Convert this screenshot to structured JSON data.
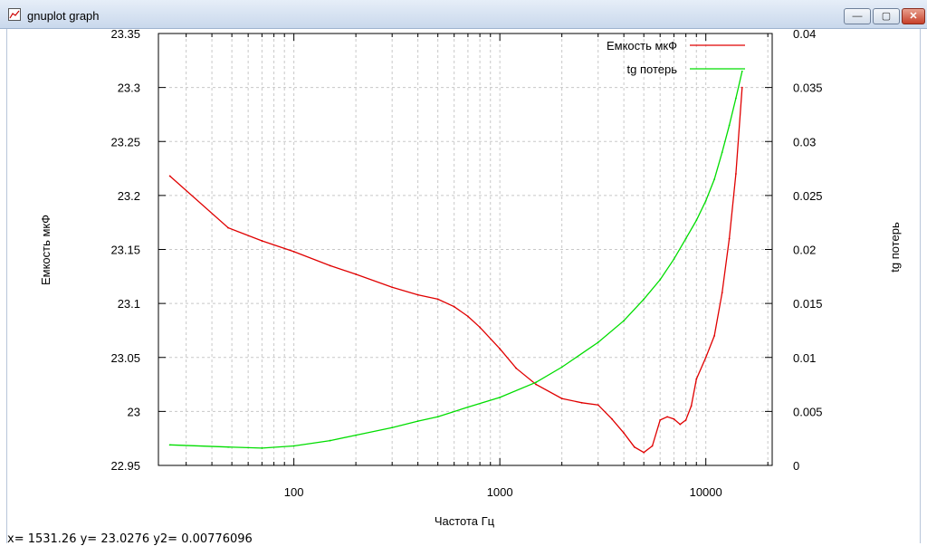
{
  "window": {
    "title": "gnuplot graph",
    "minimize_glyph": "—",
    "maximize_glyph": "▢",
    "close_glyph": "✕"
  },
  "status_text": "x= 1531.26 y= 23.0276 y2= 0.00776096",
  "chart_data": {
    "type": "line",
    "xlabel": "Частота Гц",
    "ylabel": "Емкость мкФ",
    "y2label": "tg потерь",
    "x_scale": "log",
    "xlim": [
      22,
      21000
    ],
    "ylim": [
      22.95,
      23.35
    ],
    "y2lim": [
      0,
      0.04
    ],
    "xticks": [
      100,
      1000,
      10000
    ],
    "xtick_labels": [
      "100",
      "1000",
      "10000"
    ],
    "yticks": [
      22.95,
      23.0,
      23.05,
      23.1,
      23.15,
      23.2,
      23.25,
      23.3,
      23.35
    ],
    "ytick_labels": [
      "22.95",
      "23",
      "23.05",
      "23.1",
      "23.15",
      "23.2",
      "23.25",
      "23.3",
      "23.35"
    ],
    "y2ticks": [
      0,
      0.005,
      0.01,
      0.015,
      0.02,
      0.025,
      0.03,
      0.035,
      0.04
    ],
    "y2tick_labels": [
      "0",
      "0.005",
      "0.01",
      "0.015",
      "0.02",
      "0.025",
      "0.03",
      "0.035",
      "0.04"
    ],
    "grid": true,
    "legend_position": "top-right",
    "series": [
      {
        "name": "Емкость мкФ",
        "axis": "y",
        "color": "#e00000",
        "x": [
          25,
          48,
          70,
          100,
          150,
          200,
          300,
          400,
          500,
          600,
          700,
          800,
          1000,
          1200,
          1500,
          2000,
          2500,
          3000,
          3500,
          4000,
          4500,
          5000,
          5500,
          6000,
          6500,
          7000,
          7500,
          8000,
          8500,
          9000,
          10000,
          11000,
          12000,
          13000,
          14000,
          15000
        ],
        "y": [
          23.218,
          23.17,
          23.158,
          23.148,
          23.135,
          23.127,
          23.115,
          23.108,
          23.104,
          23.097,
          23.088,
          23.078,
          23.058,
          23.04,
          23.025,
          23.012,
          23.008,
          23.006,
          22.993,
          22.98,
          22.967,
          22.962,
          22.968,
          22.992,
          22.995,
          22.993,
          22.988,
          22.992,
          23.005,
          23.03,
          23.05,
          23.07,
          23.11,
          23.16,
          23.22,
          23.3
        ]
      },
      {
        "name": "tg потерь",
        "axis": "y2",
        "color": "#00dd00",
        "x": [
          25,
          48,
          70,
          100,
          150,
          200,
          300,
          400,
          500,
          700,
          1000,
          1500,
          2000,
          3000,
          4000,
          5000,
          6000,
          7000,
          8000,
          9000,
          10000,
          11000,
          12000,
          13000,
          14000,
          15000
        ],
        "y": [
          0.0019,
          0.0017,
          0.0016,
          0.0018,
          0.0023,
          0.0028,
          0.0035,
          0.0041,
          0.0045,
          0.0054,
          0.0063,
          0.0077,
          0.0091,
          0.0114,
          0.0134,
          0.0154,
          0.0172,
          0.0191,
          0.021,
          0.0227,
          0.0245,
          0.0265,
          0.029,
          0.0315,
          0.034,
          0.0365
        ]
      }
    ]
  }
}
